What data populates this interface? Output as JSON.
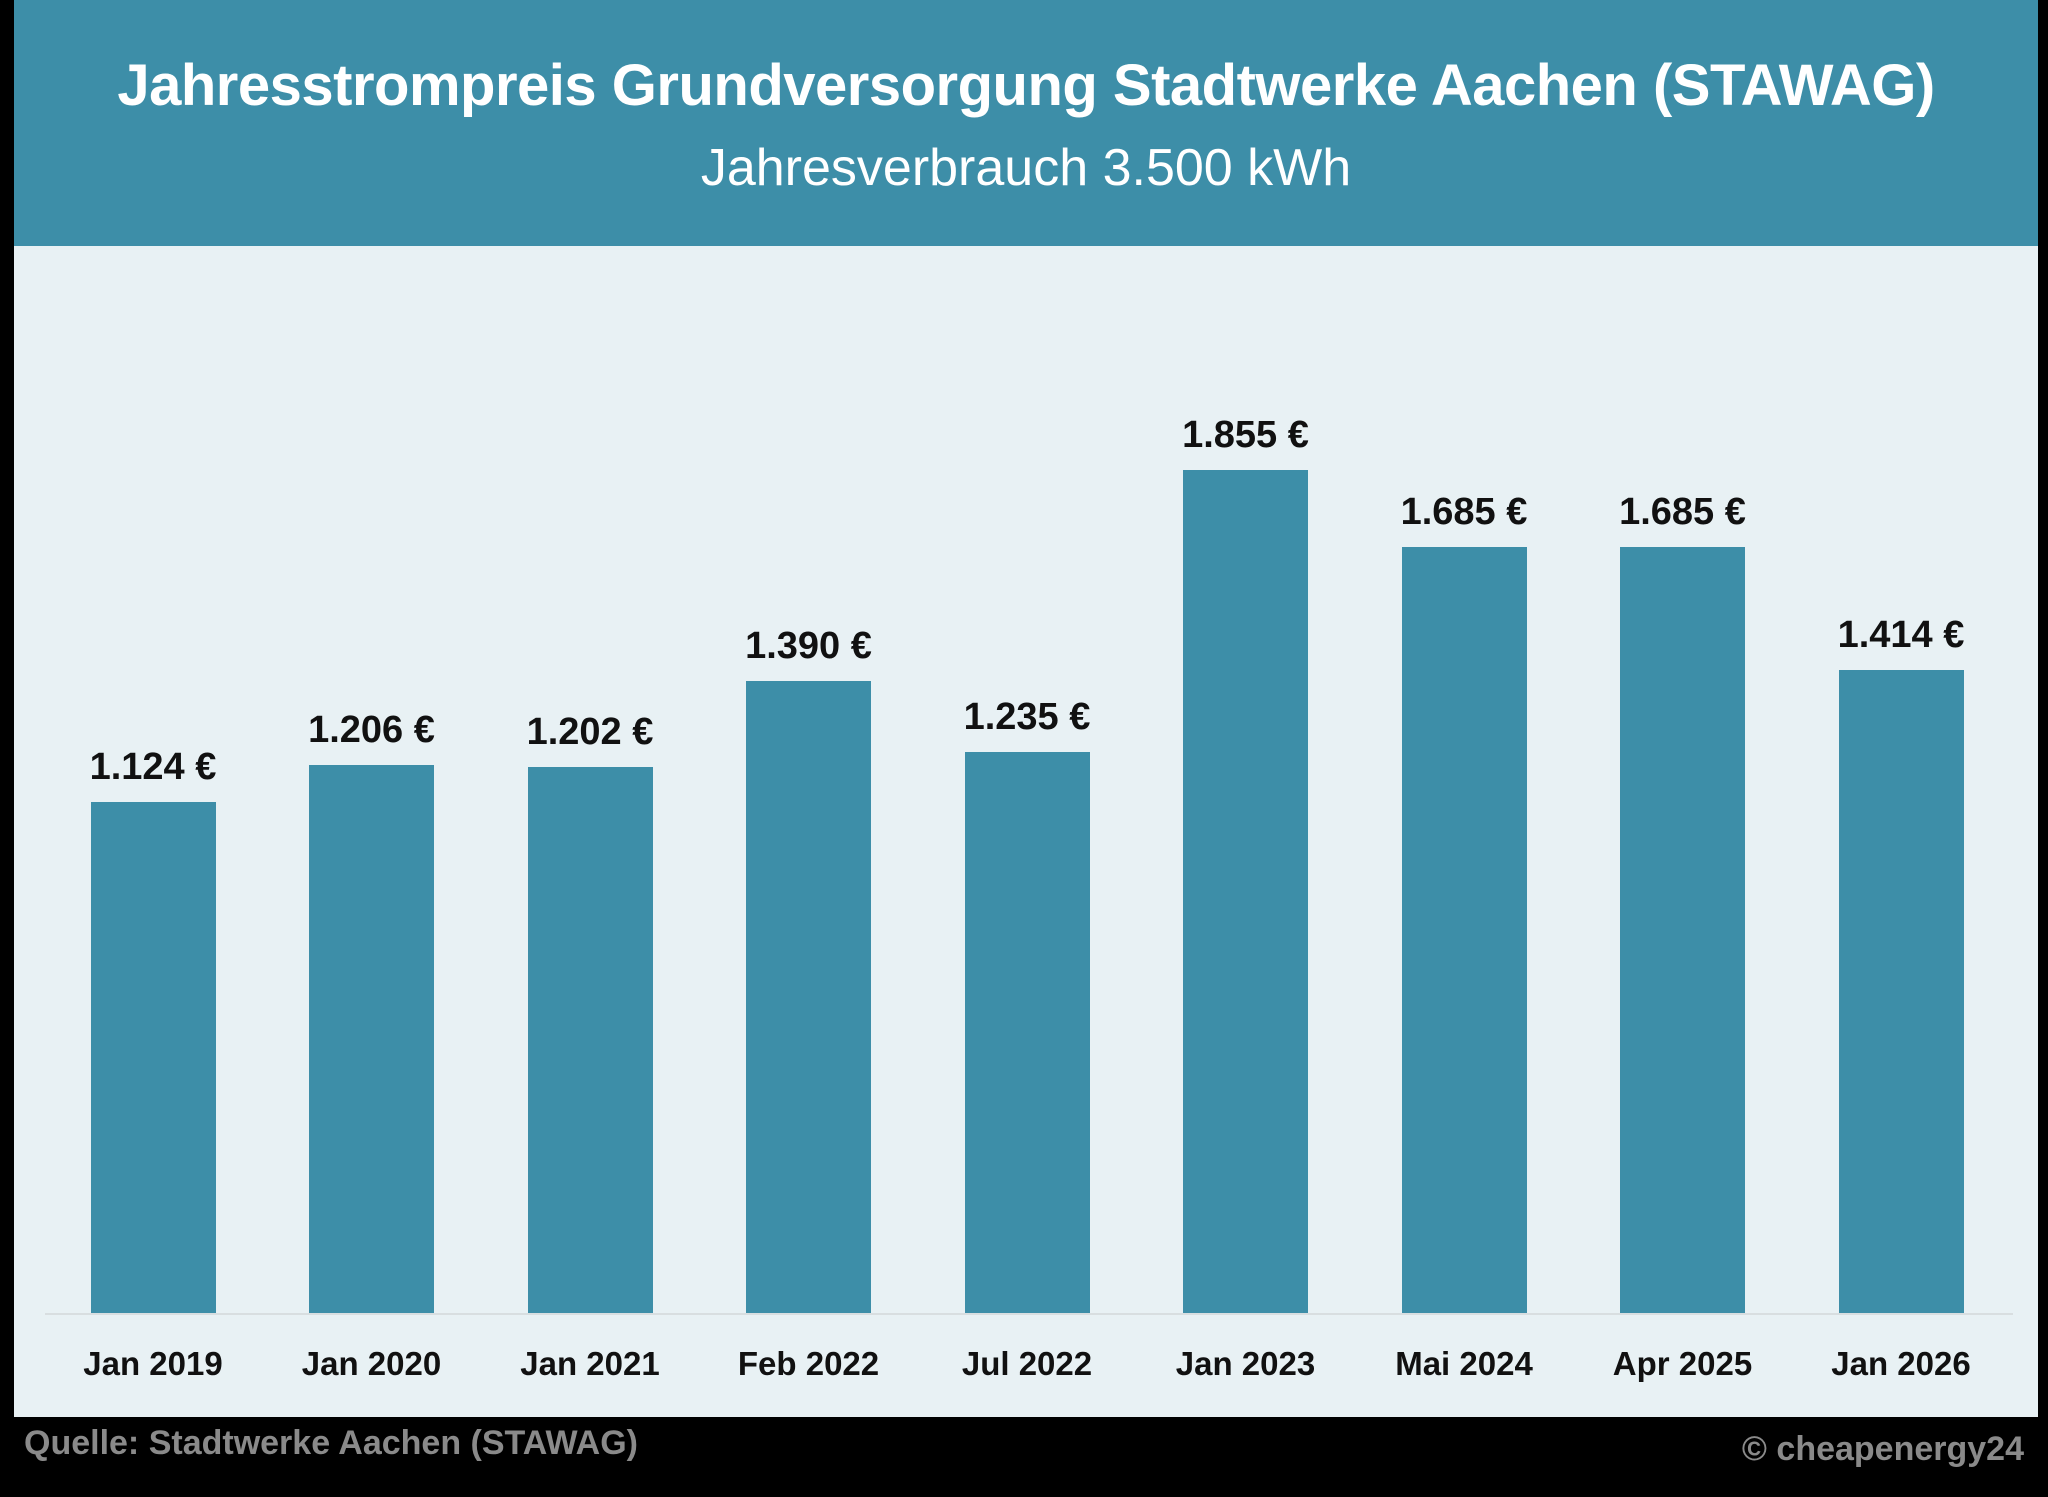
{
  "header": {
    "title": "Jahresstrompreis Grundversorgung Stadtwerke Aachen (STAWAG)",
    "subtitle": "Jahresverbrauch 3.500 kWh"
  },
  "footer": {
    "source": "Quelle: Stadtwerke Aachen (STAWAG)",
    "copyright": "© cheapenergy24"
  },
  "colors": {
    "bar": "#3d8ea8",
    "header": "#3d8ea8",
    "plot_bg": "#e8f1f4"
  },
  "chart_data": {
    "type": "bar",
    "title": "Jahresstrompreis Grundversorgung Stadtwerke Aachen (STAWAG)",
    "subtitle": "Jahresverbrauch 3.500 kWh",
    "xlabel": "",
    "ylabel": "",
    "categories": [
      "Jan 2019",
      "Jan 2020",
      "Jan 2021",
      "Feb 2022",
      "Jul 2022",
      "Jan 2023",
      "Mai 2024",
      "Apr 2025",
      "Jan 2026"
    ],
    "values": [
      1124,
      1206,
      1202,
      1390,
      1235,
      1855,
      1685,
      1685,
      1414
    ],
    "value_labels": [
      "1.124 €",
      "1.206 €",
      "1.202 €",
      "1.390 €",
      "1.235 €",
      "1.855 €",
      "1.685 €",
      "1.685 €",
      "1.414 €"
    ],
    "unit": "€",
    "ylim": [
      0,
      2150
    ],
    "grid": false,
    "legend": "none",
    "annotations": [
      "Quelle: Stadtwerke Aachen (STAWAG)",
      "© cheapenergy24"
    ]
  }
}
